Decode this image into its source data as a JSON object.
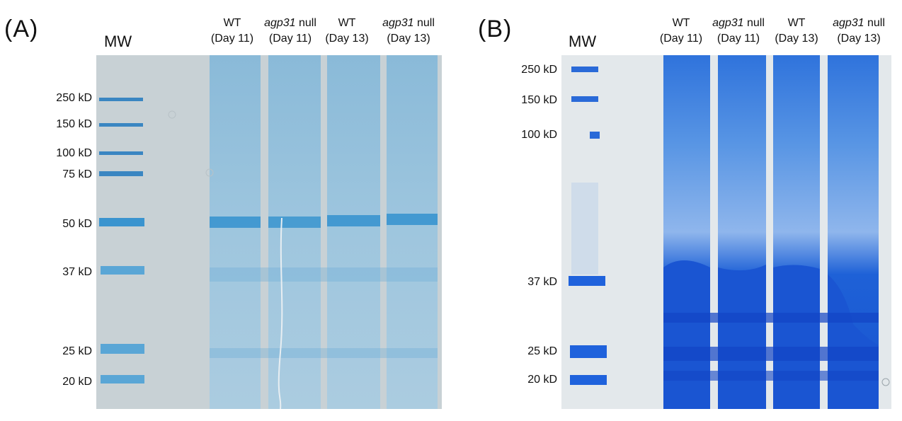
{
  "panels": [
    {
      "label": "(A)",
      "mw_header": "MW",
      "lanes": [
        {
          "line1_gene": "",
          "line1_rest": "WT",
          "line2": "(Day 11)"
        },
        {
          "line1_gene": "agp31",
          "line1_rest": " null",
          "line2": "(Day 11)"
        },
        {
          "line1_gene": "",
          "line1_rest": "WT",
          "line2": "(Day 13)"
        },
        {
          "line1_gene": "agp31",
          "line1_rest": " null",
          "line2": "(Day 13)"
        }
      ],
      "markers": [
        "250 kD",
        "150 kD",
        "100 kD",
        "75 kD",
        "50 kD",
        "37 kD",
        "25 kD",
        "20 kD"
      ],
      "stain": "light",
      "colors": {
        "background": "#c9d2d6",
        "band": "#3f9bd3",
        "lane": "#8fc0de"
      }
    },
    {
      "label": "(B)",
      "mw_header": "MW",
      "lanes": [
        {
          "line1_gene": "",
          "line1_rest": "WT",
          "line2": "(Day 11)"
        },
        {
          "line1_gene": "agp31",
          "line1_rest": " null",
          "line2": "(Day 11)"
        },
        {
          "line1_gene": "",
          "line1_rest": "WT",
          "line2": "(Day 13)"
        },
        {
          "line1_gene": "agp31",
          "line1_rest": " null",
          "line2": "(Day 13)"
        }
      ],
      "markers": [
        "250 kD",
        "150 kD",
        "100 kD",
        "37 kD",
        "25 kD",
        "20 kD"
      ],
      "stain": "dark",
      "colors": {
        "background": "#e4e9ec",
        "band": "#1a5fd8",
        "lane": "#3d83e3"
      }
    }
  ]
}
